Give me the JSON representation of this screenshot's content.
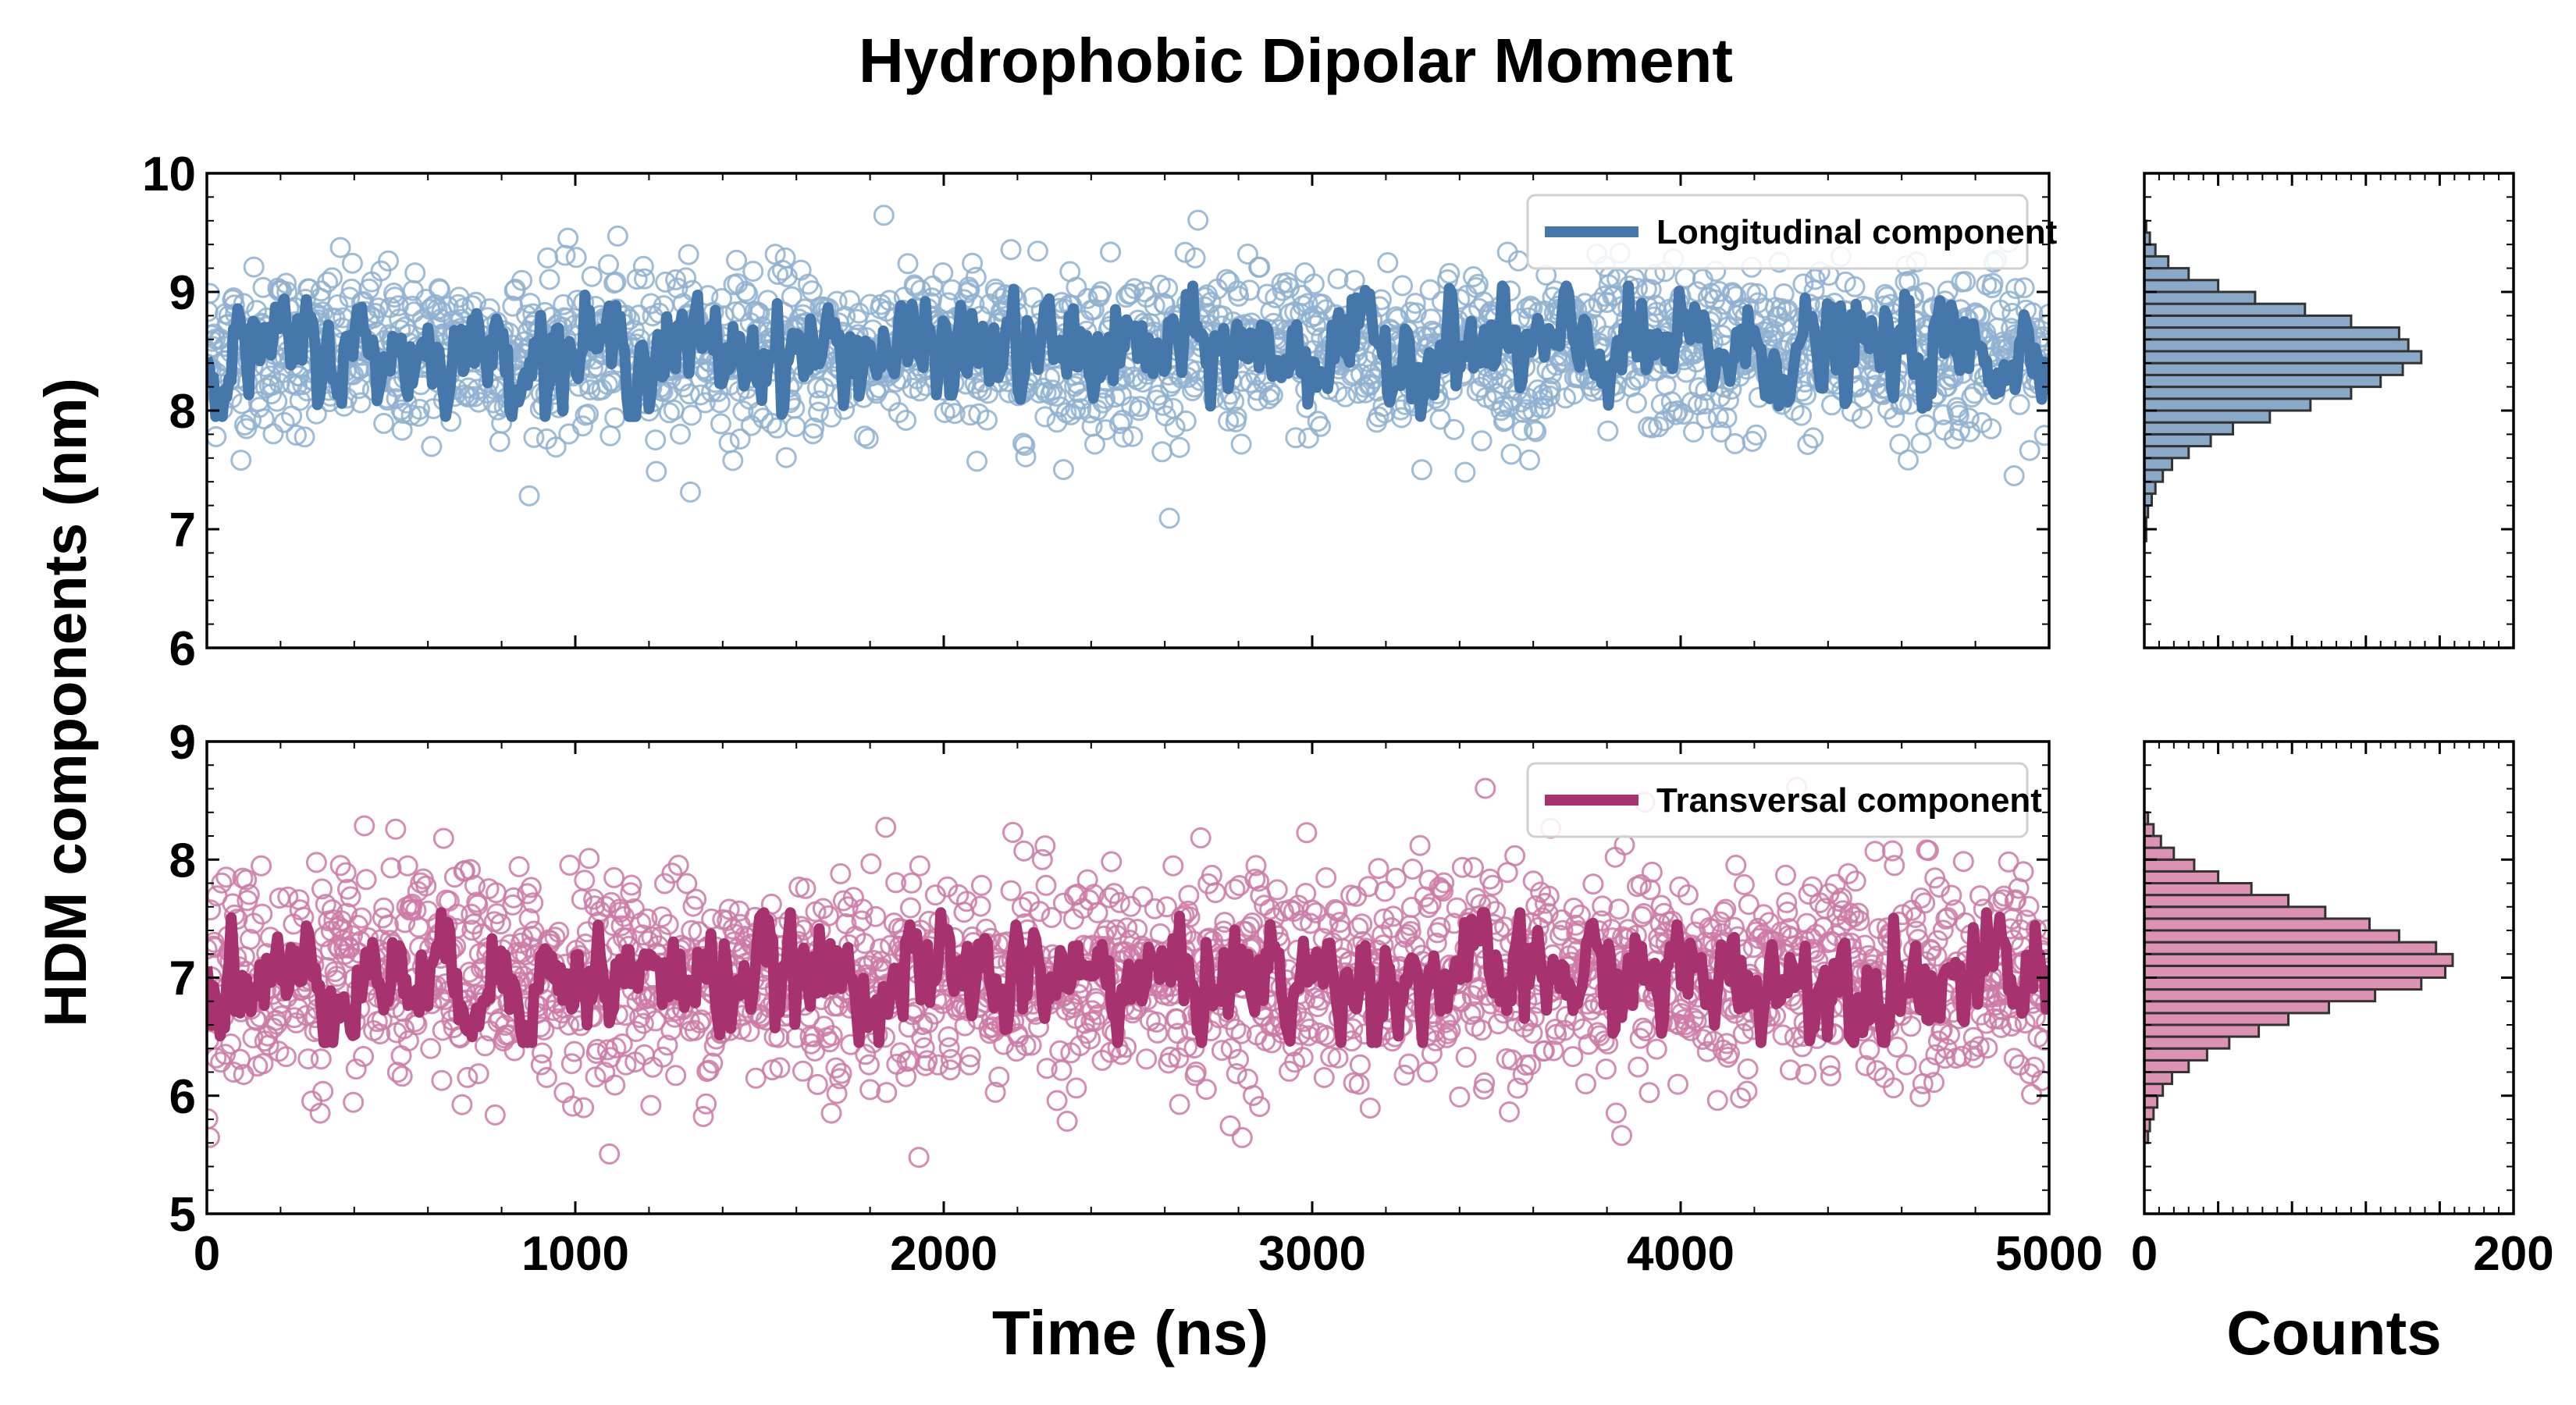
{
  "title": "Hydrophobic Dipolar Moment",
  "ylabel": "HDM components (nm)",
  "chart_data": [
    {
      "type": "scatter",
      "panel": "top-left",
      "xlim": [
        0,
        5000
      ],
      "ylim": [
        6,
        10
      ],
      "yticks": [
        6,
        7,
        8,
        9,
        10
      ],
      "xticks": [
        0,
        1000,
        2000,
        3000,
        4000,
        5000
      ],
      "xtick_labels_visible": false,
      "legend": {
        "position": "top-right",
        "label": "Longitudinal component"
      },
      "series": [
        {
          "name": "Longitudinal component",
          "style": "open-circles",
          "color": "#8fb0d0",
          "mean": 8.5,
          "std": 0.35,
          "x_step": 2.5
        },
        {
          "name": "Longitudinal component",
          "style": "line-running-average",
          "color": "#4677aa",
          "mean": 8.5,
          "amplitude": 0.2
        }
      ]
    },
    {
      "type": "scatter",
      "panel": "bottom-left",
      "xlabel": "Time (ns)",
      "xlim": [
        0,
        5000
      ],
      "ylim": [
        5,
        9
      ],
      "yticks": [
        5,
        6,
        7,
        8,
        9
      ],
      "xticks": [
        0,
        1000,
        2000,
        3000,
        4000,
        5000
      ],
      "legend": {
        "position": "top-right",
        "label": "Transversal component"
      },
      "series": [
        {
          "name": "Transversal component",
          "style": "open-circles",
          "color": "#cc7aa6",
          "mean": 7.0,
          "std": 0.45,
          "x_step": 2.5
        },
        {
          "name": "Transversal component",
          "style": "line-running-average",
          "color": "#a63370",
          "mean": 7.0,
          "amplitude": 0.22
        }
      ]
    },
    {
      "type": "bar",
      "orientation": "horizontal",
      "panel": "top-right",
      "xlim": [
        0,
        200
      ],
      "ylim": [
        6,
        10
      ],
      "color": "#8aa8c8",
      "edge_color": "#333333",
      "bins": [
        {
          "y": 6.8,
          "count": 0
        },
        {
          "y": 6.9,
          "count": 1
        },
        {
          "y": 7.0,
          "count": 1
        },
        {
          "y": 7.1,
          "count": 2
        },
        {
          "y": 7.2,
          "count": 4
        },
        {
          "y": 7.3,
          "count": 6
        },
        {
          "y": 7.4,
          "count": 10
        },
        {
          "y": 7.5,
          "count": 15
        },
        {
          "y": 7.6,
          "count": 24
        },
        {
          "y": 7.7,
          "count": 36
        },
        {
          "y": 7.8,
          "count": 48
        },
        {
          "y": 7.9,
          "count": 68
        },
        {
          "y": 8.0,
          "count": 90
        },
        {
          "y": 8.1,
          "count": 112
        },
        {
          "y": 8.2,
          "count": 128
        },
        {
          "y": 8.3,
          "count": 140
        },
        {
          "y": 8.4,
          "count": 150
        },
        {
          "y": 8.5,
          "count": 143
        },
        {
          "y": 8.6,
          "count": 138
        },
        {
          "y": 8.7,
          "count": 112
        },
        {
          "y": 8.8,
          "count": 87
        },
        {
          "y": 8.9,
          "count": 60
        },
        {
          "y": 9.0,
          "count": 40
        },
        {
          "y": 9.1,
          "count": 24
        },
        {
          "y": 9.2,
          "count": 13
        },
        {
          "y": 9.3,
          "count": 6
        },
        {
          "y": 9.4,
          "count": 3
        },
        {
          "y": 9.5,
          "count": 1
        }
      ]
    },
    {
      "type": "bar",
      "orientation": "horizontal",
      "panel": "bottom-right",
      "xlabel": "Counts",
      "xlim": [
        0,
        200
      ],
      "ylim": [
        5,
        9
      ],
      "xticks": [
        0,
        200
      ],
      "color": "#dd92b4",
      "edge_color": "#333333",
      "bins": [
        {
          "y": 5.6,
          "count": 2
        },
        {
          "y": 5.7,
          "count": 3
        },
        {
          "y": 5.8,
          "count": 5
        },
        {
          "y": 5.9,
          "count": 7
        },
        {
          "y": 6.0,
          "count": 10
        },
        {
          "y": 6.1,
          "count": 15
        },
        {
          "y": 6.2,
          "count": 24
        },
        {
          "y": 6.3,
          "count": 34
        },
        {
          "y": 6.4,
          "count": 46
        },
        {
          "y": 6.5,
          "count": 62
        },
        {
          "y": 6.6,
          "count": 78
        },
        {
          "y": 6.7,
          "count": 100
        },
        {
          "y": 6.8,
          "count": 125
        },
        {
          "y": 6.9,
          "count": 150
        },
        {
          "y": 7.0,
          "count": 163
        },
        {
          "y": 7.1,
          "count": 167
        },
        {
          "y": 7.2,
          "count": 158
        },
        {
          "y": 7.3,
          "count": 138
        },
        {
          "y": 7.4,
          "count": 122
        },
        {
          "y": 7.5,
          "count": 98
        },
        {
          "y": 7.6,
          "count": 78
        },
        {
          "y": 7.7,
          "count": 58
        },
        {
          "y": 7.8,
          "count": 40
        },
        {
          "y": 7.9,
          "count": 27
        },
        {
          "y": 8.0,
          "count": 16
        },
        {
          "y": 8.1,
          "count": 9
        },
        {
          "y": 8.2,
          "count": 5
        },
        {
          "y": 8.3,
          "count": 2
        }
      ]
    }
  ]
}
